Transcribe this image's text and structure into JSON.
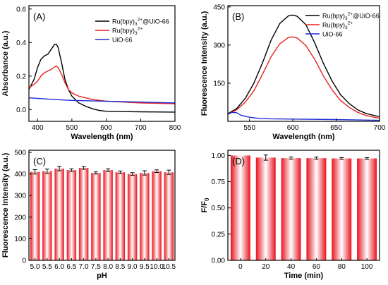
{
  "chart_data": [
    {
      "panel": "(A)",
      "type": "line",
      "xlabel": "Wavelength (nm)",
      "ylabel": "Absorbance (a.u.)",
      "xlim": [
        375,
        800
      ],
      "ylim": [
        -0.07,
        0.62
      ],
      "xticks": [
        400,
        500,
        600,
        700,
        800
      ],
      "yticks": [
        0.0,
        0.2,
        0.4,
        0.6
      ],
      "ytick_labels": [
        "0.0",
        "0.2",
        "0.4",
        "0.6"
      ],
      "legend_position": "top-right",
      "series": [
        {
          "name": "Ru(bpy)3 2+ @UiO-66",
          "label_main": "Ru(bpy)",
          "label_sub": "3",
          "label_sup": "2+",
          "label_tail": "@UiO-66",
          "color": "#000000",
          "points": [
            [
              375,
              0.12
            ],
            [
              390,
              0.18
            ],
            [
              400,
              0.25
            ],
            [
              410,
              0.3
            ],
            [
              420,
              0.32
            ],
            [
              430,
              0.33
            ],
            [
              440,
              0.36
            ],
            [
              450,
              0.39
            ],
            [
              455,
              0.39
            ],
            [
              460,
              0.37
            ],
            [
              470,
              0.28
            ],
            [
              480,
              0.18
            ],
            [
              490,
              0.12
            ],
            [
              500,
              0.08
            ],
            [
              520,
              0.04
            ],
            [
              540,
              0.02
            ],
            [
              560,
              0.005
            ],
            [
              580,
              -0.005
            ],
            [
              600,
              -0.01
            ],
            [
              650,
              -0.012
            ],
            [
              700,
              -0.013
            ],
            [
              800,
              -0.015
            ]
          ]
        },
        {
          "name": "Ru(bpy)3 2+",
          "label_main": "Ru(bpy)",
          "label_sub": "3",
          "label_sup": "2+",
          "label_tail": "",
          "color": "#e8221c",
          "points": [
            [
              375,
              0.13
            ],
            [
              390,
              0.15
            ],
            [
              400,
              0.17
            ],
            [
              410,
              0.2
            ],
            [
              420,
              0.22
            ],
            [
              430,
              0.23
            ],
            [
              440,
              0.24
            ],
            [
              450,
              0.255
            ],
            [
              455,
              0.26
            ],
            [
              460,
              0.25
            ],
            [
              470,
              0.21
            ],
            [
              480,
              0.16
            ],
            [
              490,
              0.12
            ],
            [
              500,
              0.1
            ],
            [
              520,
              0.08
            ],
            [
              540,
              0.07
            ],
            [
              560,
              0.06
            ],
            [
              600,
              0.05
            ],
            [
              650,
              0.045
            ],
            [
              700,
              0.04
            ],
            [
              800,
              0.035
            ]
          ]
        },
        {
          "name": "UiO-66",
          "label_main": "UiO-66",
          "label_sub": "",
          "label_sup": "",
          "label_tail": "",
          "color": "#1f2bd6",
          "points": [
            [
              375,
              0.07
            ],
            [
              450,
              0.06
            ],
            [
              500,
              0.055
            ],
            [
              600,
              0.05
            ],
            [
              700,
              0.045
            ],
            [
              800,
              0.04
            ]
          ]
        }
      ]
    },
    {
      "panel": "(B)",
      "type": "line",
      "xlabel": "Wavelength (nm)",
      "ylabel": "Fluorescence Intensity (a.u.)",
      "xlim": [
        525,
        700
      ],
      "ylim": [
        0,
        455
      ],
      "xticks": [
        550,
        600,
        650,
        700
      ],
      "yticks": [
        150,
        300,
        450
      ],
      "ytick_labels": [
        "150",
        "300",
        "450"
      ],
      "legend_position": "top-right",
      "series": [
        {
          "name": "Ru(bpy)3 2+ @UiO-66",
          "label_main": "Ru(bpy)",
          "label_sub": "3",
          "label_sup": "2+",
          "label_tail": "@UiO-66",
          "color": "#000000",
          "points": [
            [
              525,
              30
            ],
            [
              535,
              50
            ],
            [
              545,
              90
            ],
            [
              555,
              150
            ],
            [
              565,
              230
            ],
            [
              575,
              320
            ],
            [
              585,
              385
            ],
            [
              595,
              415
            ],
            [
              600,
              418
            ],
            [
              605,
              413
            ],
            [
              615,
              380
            ],
            [
              625,
              310
            ],
            [
              635,
              230
            ],
            [
              645,
              160
            ],
            [
              655,
              105
            ],
            [
              665,
              70
            ],
            [
              675,
              45
            ],
            [
              685,
              30
            ],
            [
              700,
              18
            ]
          ]
        },
        {
          "name": "Ru(bpy)3 2+",
          "label_main": "Ru(bpy)",
          "label_sub": "3",
          "label_sup": "2+",
          "label_tail": "",
          "color": "#e8221c",
          "points": [
            [
              525,
              28
            ],
            [
              535,
              45
            ],
            [
              545,
              75
            ],
            [
              555,
              120
            ],
            [
              565,
              185
            ],
            [
              575,
              255
            ],
            [
              585,
              305
            ],
            [
              595,
              330
            ],
            [
              600,
              332
            ],
            [
              605,
              328
            ],
            [
              615,
              298
            ],
            [
              625,
              245
            ],
            [
              635,
              180
            ],
            [
              645,
              125
            ],
            [
              655,
              82
            ],
            [
              665,
              55
            ],
            [
              675,
              35
            ],
            [
              685,
              22
            ],
            [
              700,
              12
            ]
          ]
        },
        {
          "name": "UiO-66",
          "label_main": "UiO-66",
          "label_sub": "",
          "label_sup": "",
          "label_tail": "",
          "color": "#1f2bd6",
          "points": [
            [
              525,
              28
            ],
            [
              530,
              35
            ],
            [
              535,
              34
            ],
            [
              540,
              24
            ],
            [
              550,
              16
            ],
            [
              560,
              12
            ],
            [
              575,
              10
            ],
            [
              600,
              9
            ],
            [
              650,
              7
            ],
            [
              700,
              4
            ]
          ]
        }
      ]
    },
    {
      "panel": "(C)",
      "type": "bar",
      "xlabel": "pH",
      "ylabel": "Fluorescence Intensity (a.u.)",
      "ylim": [
        0,
        510
      ],
      "yticks": [
        0,
        100,
        200,
        300,
        400,
        500
      ],
      "ytick_labels": [
        "0",
        "100",
        "200",
        "300",
        "400",
        "500"
      ],
      "categories": [
        "5.0",
        "5.5",
        "6.0",
        "6.5",
        "7.0",
        "7.5",
        "8.0",
        "8.5",
        "9.0",
        "9.5",
        "10.0",
        "10.5"
      ],
      "values": [
        410,
        413,
        425,
        418,
        428,
        405,
        418,
        408,
        400,
        405,
        413,
        408
      ],
      "errors": [
        10,
        10,
        10,
        6,
        6,
        5,
        6,
        6,
        6,
        10,
        6,
        10
      ]
    },
    {
      "panel": "(D)",
      "type": "bar",
      "xlabel": "Time (min)",
      "ylabel": "F/F0",
      "ylabel_main": "F/F",
      "ylabel_sub": "0",
      "ylim": [
        0,
        1.05
      ],
      "yticks": [
        0.0,
        0.25,
        0.5,
        0.75,
        1.0
      ],
      "ytick_labels": [
        "0.00",
        "0.25",
        "0.50",
        "0.75",
        "1.00"
      ],
      "categories": [
        "0",
        "20",
        "40",
        "60",
        "80",
        "100"
      ],
      "values": [
        1.0,
        0.98,
        0.975,
        0.975,
        0.972,
        0.972
      ],
      "errors": [
        0.0,
        0.025,
        0.01,
        0.01,
        0.008,
        0.008
      ]
    }
  ]
}
